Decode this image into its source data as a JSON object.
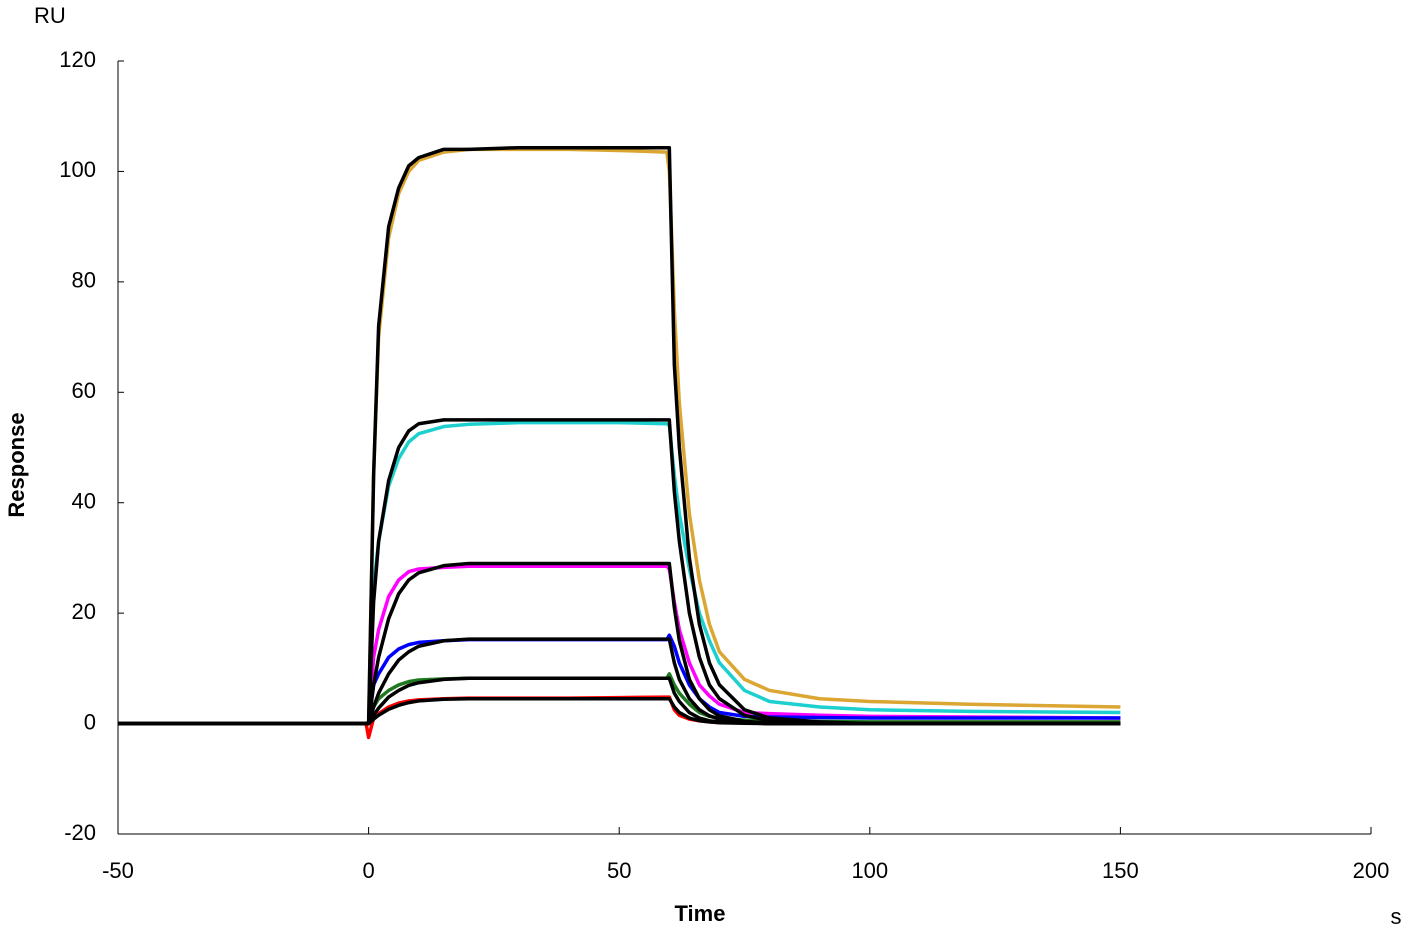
{
  "chart_data": {
    "type": "line",
    "xlabel": "Time",
    "ylabel": "Response",
    "yunit": "RU",
    "xunit": "s",
    "xlim": [
      -50,
      200
    ],
    "xticks": [
      -50,
      0,
      50,
      100,
      150,
      200
    ],
    "ylim": [
      -20,
      120
    ],
    "yticks": [
      -20,
      0,
      20,
      40,
      60,
      80,
      100,
      120
    ],
    "x": [
      -50,
      -10,
      -0.5,
      0,
      1,
      2,
      4,
      6,
      8,
      10,
      15,
      20,
      30,
      40,
      50,
      59.5,
      60,
      61,
      62,
      64,
      66,
      68,
      70,
      75,
      80,
      90,
      100,
      120,
      150
    ],
    "series": [
      {
        "color": "#dba632",
        "values": [
          0,
          0,
          0,
          0,
          45,
          70,
          88,
          96,
          100,
          102,
          103.5,
          104,
          104,
          104,
          103.8,
          103.5,
          100,
          75,
          58,
          38,
          26,
          18,
          13,
          8,
          6,
          4.5,
          4,
          3.5,
          3
        ]
      },
      {
        "color": "#1ecfcf",
        "values": [
          0,
          0,
          0,
          0,
          25,
          33,
          43,
          48,
          51,
          52.5,
          53.8,
          54.2,
          54.5,
          54.5,
          54.5,
          54.3,
          54,
          45,
          38,
          28,
          20,
          15,
          11,
          6,
          4,
          3,
          2.5,
          2.2,
          2
        ]
      },
      {
        "color": "#ff00ff",
        "values": [
          0,
          0,
          0,
          0,
          12,
          17,
          23,
          26,
          27.5,
          28,
          28.3,
          28.5,
          28.5,
          28.5,
          28.5,
          28.5,
          28,
          22,
          17,
          11,
          7,
          5,
          3.5,
          2,
          1.8,
          1.5,
          1.3,
          1.2,
          1
        ]
      },
      {
        "color": "#0000ff",
        "values": [
          0,
          0,
          0,
          0,
          7,
          9,
          12,
          13.5,
          14.3,
          14.7,
          15,
          15.2,
          15.2,
          15.2,
          15.2,
          15.2,
          16,
          14,
          11,
          7,
          4.5,
          3,
          2,
          1.3,
          1.2,
          1.1,
          1,
          1,
          1
        ]
      },
      {
        "color": "#1f7a1f",
        "values": [
          0,
          0,
          0,
          0,
          3,
          4.5,
          6,
          7,
          7.6,
          7.9,
          8.1,
          8.2,
          8.2,
          8.2,
          8.2,
          8.2,
          9,
          7,
          5.5,
          3.5,
          2,
          1.3,
          1,
          0.6,
          0.5,
          0.4,
          0.3,
          0.3,
          0.3
        ]
      },
      {
        "color": "#ff0000",
        "values": [
          0,
          0,
          0,
          -2.5,
          1,
          1.8,
          3,
          3.7,
          4.1,
          4.3,
          4.5,
          4.6,
          4.6,
          4.6,
          4.7,
          4.8,
          4.8,
          2.5,
          1.5,
          0.8,
          0.5,
          0.3,
          0.2,
          0.1,
          0,
          0,
          0,
          0,
          0
        ]
      },
      {
        "color": "#000000",
        "values": [
          0,
          0,
          0,
          0,
          45,
          72,
          90,
          97,
          101,
          102.5,
          104,
          104,
          104.3,
          104.3,
          104.3,
          104.3,
          104.3,
          65,
          50,
          30,
          18,
          11,
          7,
          2.5,
          1,
          0.3,
          0,
          0,
          0
        ]
      },
      {
        "color": "#000000",
        "values": [
          0,
          0,
          0,
          0,
          22,
          33,
          44,
          50,
          53,
          54.3,
          55,
          55,
          55,
          55,
          55,
          55,
          55,
          42,
          33,
          20,
          12,
          7,
          4.5,
          1.5,
          0.5,
          0.1,
          0,
          0,
          0
        ]
      },
      {
        "color": "#000000",
        "values": [
          0,
          0,
          0,
          0,
          7,
          12,
          19,
          23.5,
          26,
          27.3,
          28.6,
          29,
          29,
          29,
          29,
          29,
          29,
          21,
          15,
          8,
          4.5,
          2.5,
          1.4,
          0.4,
          0.1,
          0,
          0,
          0,
          0
        ]
      },
      {
        "color": "#000000",
        "values": [
          0,
          0,
          0,
          0,
          3,
          5.5,
          9,
          11.5,
          13,
          14,
          15,
          15.3,
          15.3,
          15.3,
          15.3,
          15.3,
          15.3,
          11,
          8,
          4.5,
          2.5,
          1.4,
          0.8,
          0.2,
          0,
          0,
          0,
          0,
          0
        ]
      },
      {
        "color": "#000000",
        "values": [
          0,
          0,
          0,
          0,
          1.5,
          2.8,
          4.8,
          6,
          6.9,
          7.4,
          8,
          8.2,
          8.2,
          8.2,
          8.2,
          8.2,
          8.2,
          5.5,
          4,
          2,
          1,
          0.5,
          0.3,
          0.1,
          0,
          0,
          0,
          0,
          0
        ]
      },
      {
        "color": "#000000",
        "values": [
          0,
          0,
          0,
          0,
          0.8,
          1.5,
          2.6,
          3.3,
          3.8,
          4.1,
          4.4,
          4.5,
          4.5,
          4.5,
          4.5,
          4.5,
          4.5,
          3,
          2,
          1,
          0.5,
          0.3,
          0.15,
          0.05,
          0,
          0,
          0,
          0,
          0
        ]
      }
    ]
  }
}
